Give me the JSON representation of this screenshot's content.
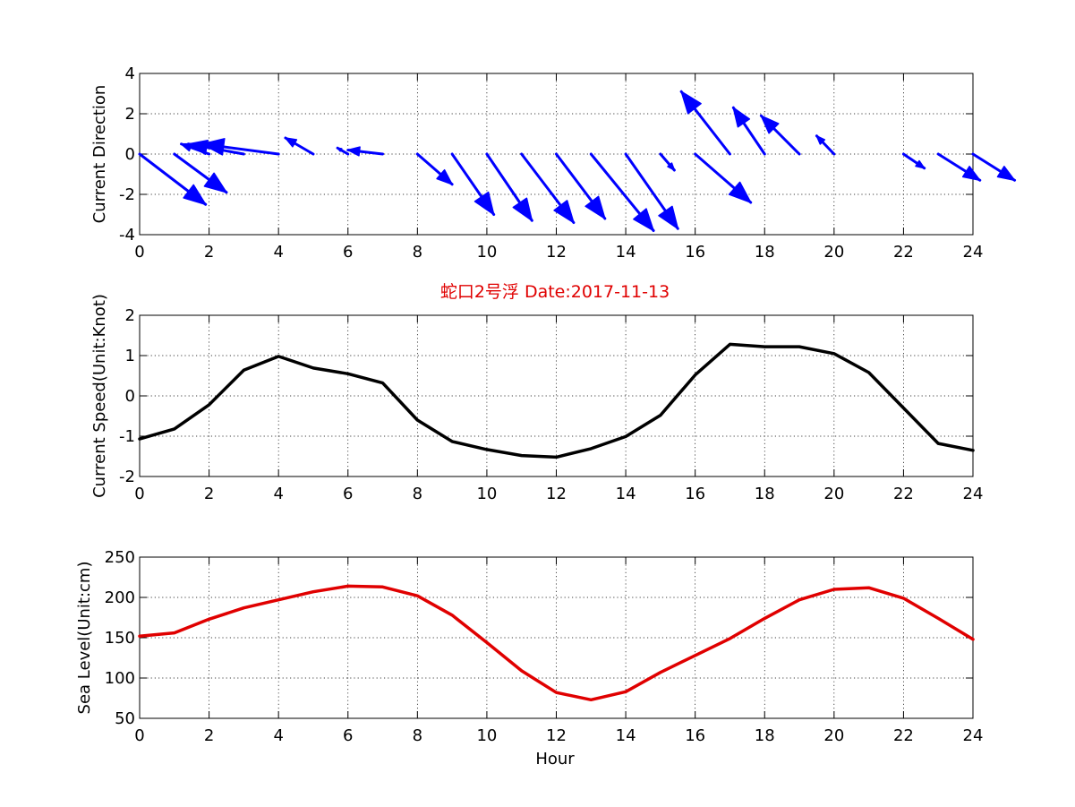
{
  "chart_data": [
    {
      "type": "quiver",
      "ylabel": "Current Direction",
      "xlim": [
        0,
        24
      ],
      "ylim": [
        -4,
        4
      ],
      "xticks": [
        0,
        2,
        4,
        6,
        8,
        10,
        12,
        14,
        16,
        18,
        20,
        22,
        24
      ],
      "yticks": [
        -4,
        -2,
        0,
        2,
        4
      ],
      "grid": true,
      "arrow_color": "#0000ff",
      "x": [
        0,
        1,
        2,
        3,
        4,
        5,
        6,
        7,
        8,
        9,
        10,
        11,
        12,
        13,
        14,
        15,
        16,
        17,
        18,
        19,
        20,
        21,
        22,
        23,
        24
      ],
      "u": [
        1.9,
        1.5,
        -0.8,
        -1.6,
        -2.2,
        -0.8,
        -0.3,
        -1.0,
        1.0,
        1.2,
        1.3,
        1.5,
        1.4,
        1.8,
        1.5,
        0.4,
        1.6,
        -1.4,
        -0.9,
        -1.1,
        -0.5,
        0,
        0.6,
        1.2,
        1.2
      ],
      "v": [
        -2.5,
        -1.9,
        0.5,
        0.5,
        0.5,
        0.8,
        0.3,
        0.2,
        -1.5,
        -3.0,
        -3.3,
        -3.4,
        -3.2,
        -3.8,
        -3.7,
        -0.8,
        -2.4,
        3.1,
        2.3,
        1.9,
        0.9,
        0,
        -0.7,
        -1.3,
        -1.3
      ]
    },
    {
      "type": "line",
      "title": "蛇口2号浮   Date:2017-11-13",
      "ylabel": "Current Speed(Unit:Knot)",
      "xlim": [
        0,
        24
      ],
      "ylim": [
        -2,
        2
      ],
      "xticks": [
        0,
        2,
        4,
        6,
        8,
        10,
        12,
        14,
        16,
        18,
        20,
        22,
        24
      ],
      "yticks": [
        -2,
        -1,
        0,
        1,
        2
      ],
      "grid": true,
      "color": "#000000",
      "x": [
        0,
        1,
        2,
        3,
        4,
        5,
        6,
        7,
        8,
        9,
        10,
        11,
        12,
        13,
        14,
        15,
        16,
        17,
        18,
        19,
        20,
        21,
        22,
        23,
        24
      ],
      "y": [
        -1.07,
        -0.82,
        -0.22,
        0.64,
        0.98,
        0.69,
        0.55,
        0.32,
        -0.6,
        -1.13,
        -1.33,
        -1.48,
        -1.52,
        -1.31,
        -1.01,
        -0.48,
        0.52,
        1.28,
        1.22,
        1.22,
        1.05,
        0.58,
        -0.3,
        -1.18,
        -1.35
      ]
    },
    {
      "type": "line",
      "xlabel": "Hour",
      "ylabel": "Sea Level(Unit:cm)",
      "xlim": [
        0,
        24
      ],
      "ylim": [
        50,
        250
      ],
      "xticks": [
        0,
        2,
        4,
        6,
        8,
        10,
        12,
        14,
        16,
        18,
        20,
        22,
        24
      ],
      "yticks": [
        50,
        100,
        150,
        200,
        250
      ],
      "grid": true,
      "color": "#e00000",
      "x": [
        0,
        1,
        2,
        3,
        4,
        5,
        6,
        7,
        8,
        9,
        10,
        11,
        12,
        13,
        14,
        15,
        16,
        17,
        18,
        19,
        20,
        21,
        22,
        23,
        24
      ],
      "y": [
        152,
        156,
        173,
        187,
        197,
        207,
        214,
        213,
        202,
        178,
        144,
        109,
        82,
        73,
        83,
        107,
        128,
        149,
        174,
        197,
        210,
        212,
        199,
        174,
        148
      ]
    }
  ]
}
